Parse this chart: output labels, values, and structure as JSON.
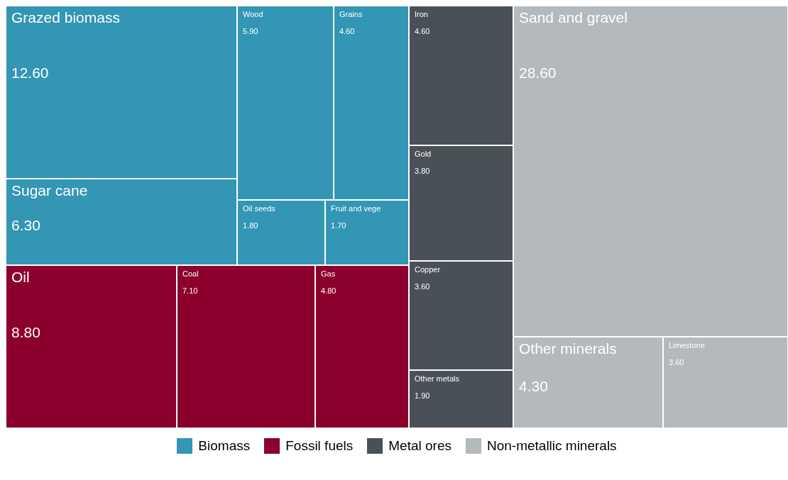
{
  "chart_data": {
    "type": "other",
    "legend": "bottom",
    "categories": [
      "Grazed biomass",
      "Sugar cane",
      "Wood",
      "Grains",
      "Oil seeds",
      "Fruit and vege",
      "Sand and gravel",
      "Other minerals",
      "Limestone",
      "Oil",
      "Coal",
      "Gas",
      "Iron",
      "Gold",
      "Copper",
      "Other metals"
    ],
    "series": [
      {
        "name": "Biomass",
        "color": "#3296b4",
        "values": [
          12.6,
          6.3,
          5.9,
          4.6,
          1.8,
          1.7,
          null,
          null,
          null,
          null,
          null,
          null,
          null,
          null,
          null,
          null
        ],
        "value_labels": [
          "12.60",
          "6.30",
          "5.90",
          "4.60",
          "1.80",
          "1.70",
          null,
          null,
          null,
          null,
          null,
          null,
          null,
          null,
          null,
          null
        ]
      },
      {
        "name": "Fossil fuels",
        "color": "#8c002d",
        "values": [
          null,
          null,
          null,
          null,
          null,
          null,
          null,
          null,
          null,
          8.8,
          7.1,
          4.8,
          null,
          null,
          null,
          null
        ],
        "value_labels": [
          null,
          null,
          null,
          null,
          null,
          null,
          null,
          null,
          null,
          "8.80",
          "7.10",
          "4.80",
          null,
          null,
          null,
          null
        ]
      },
      {
        "name": "Metal ores",
        "color": "#4a5058",
        "values": [
          null,
          null,
          null,
          null,
          null,
          null,
          null,
          null,
          null,
          null,
          null,
          null,
          4.6,
          3.8,
          3.6,
          1.9
        ],
        "value_labels": [
          null,
          null,
          null,
          null,
          null,
          null,
          null,
          null,
          null,
          null,
          null,
          null,
          "4.60",
          "3.80",
          "3.60",
          "1.90"
        ]
      },
      {
        "name": "Non-metallic minerals",
        "color": "#b4b9bd",
        "values": [
          null,
          null,
          null,
          null,
          null,
          null,
          28.6,
          4.3,
          3.6,
          null,
          null,
          null,
          null,
          null,
          null,
          null
        ],
        "value_labels": [
          null,
          null,
          null,
          null,
          null,
          null,
          "28.60",
          "4.30",
          "3.60",
          null,
          null,
          null,
          null,
          null,
          null,
          null
        ]
      }
    ]
  }
}
